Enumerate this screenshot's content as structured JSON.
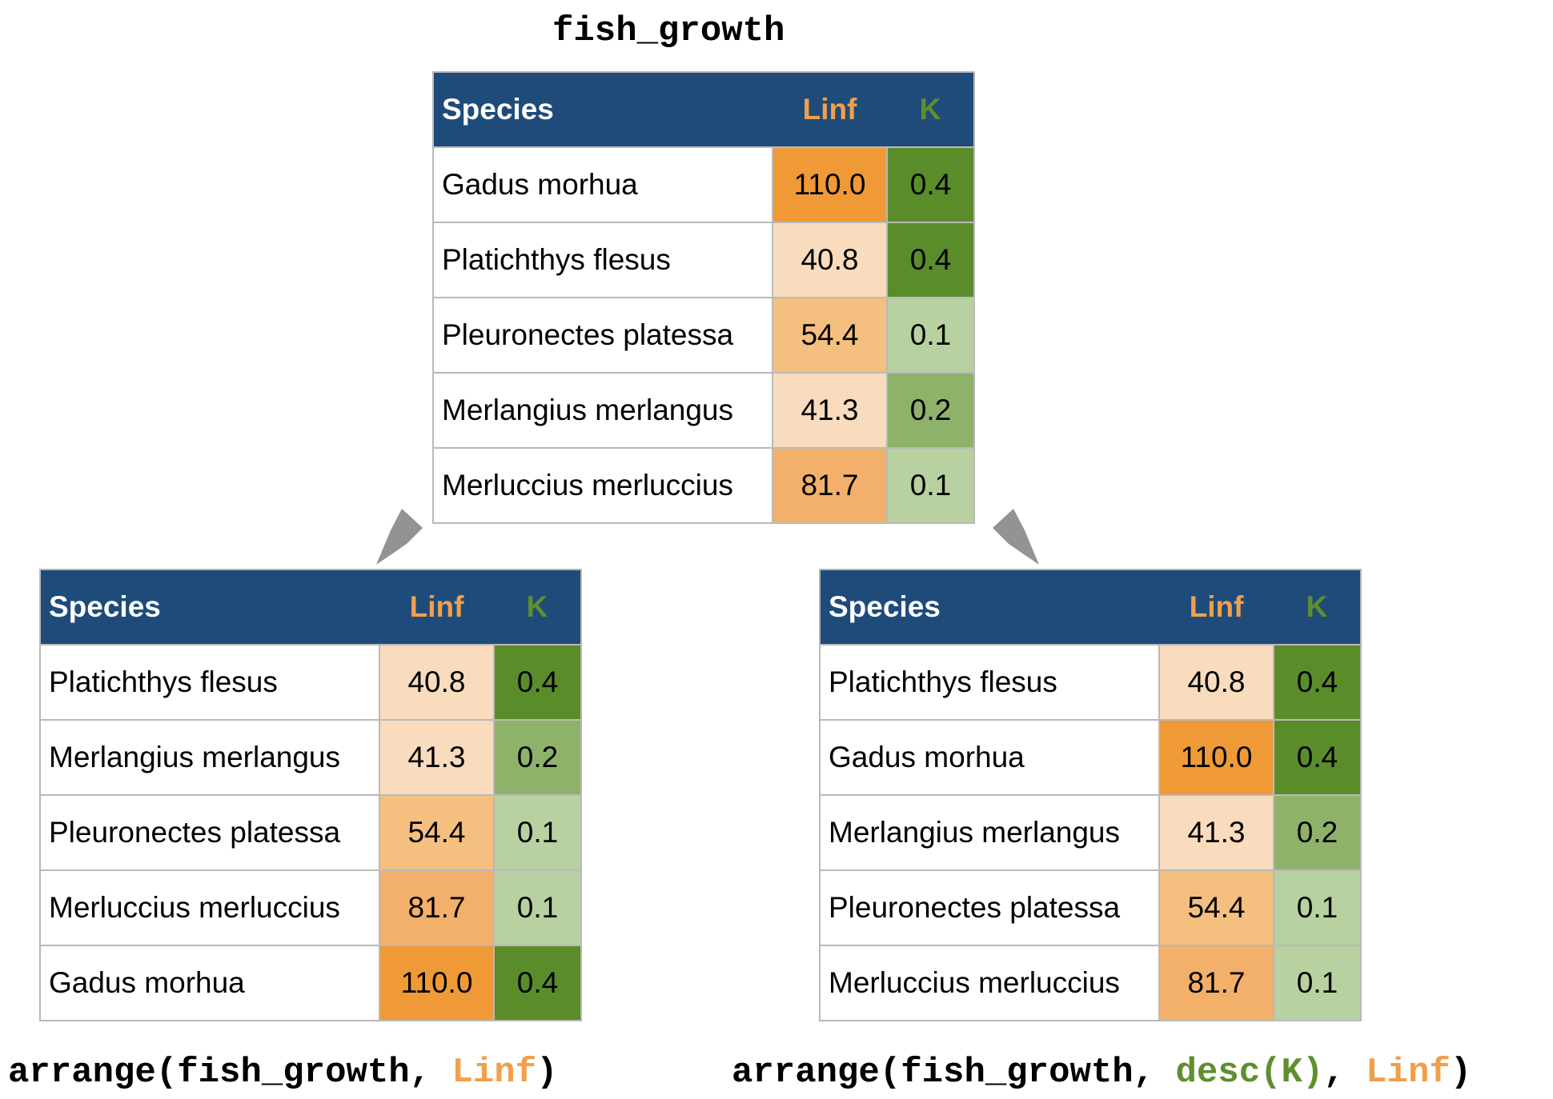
{
  "title": "fish_growth",
  "headers": {
    "species": "Species",
    "linf": "Linf",
    "k": "K"
  },
  "colors": {
    "header_bg": "#1f4b7b",
    "linf_header": "#f0a04b",
    "k_header": "#5f8f2c",
    "linf_scale": {
      "40.8": "#f8dcbd",
      "41.3": "#f8dcbd",
      "54.4": "#f5bf7f",
      "81.7": "#f3b06a",
      "110.0": "#ef9a36"
    },
    "k_scale": {
      "0.4": "#5b8c2a",
      "0.2": "#8fb26a",
      "0.1": "#b8d1a0"
    }
  },
  "tables": {
    "top": [
      {
        "species": "Gadus morhua",
        "linf": "110.0",
        "k": "0.4"
      },
      {
        "species": "Platichthys flesus",
        "linf": "40.8",
        "k": "0.4"
      },
      {
        "species": "Pleuronectes platessa",
        "linf": "54.4",
        "k": "0.1"
      },
      {
        "species": "Merlangius merlangus",
        "linf": "41.3",
        "k": "0.2"
      },
      {
        "species": "Merluccius merluccius",
        "linf": "81.7",
        "k": "0.1"
      }
    ],
    "left": [
      {
        "species": "Platichthys flesus",
        "linf": "40.8",
        "k": "0.4"
      },
      {
        "species": "Merlangius merlangus",
        "linf": "41.3",
        "k": "0.2"
      },
      {
        "species": "Pleuronectes platessa",
        "linf": "54.4",
        "k": "0.1"
      },
      {
        "species": "Merluccius merluccius",
        "linf": "81.7",
        "k": "0.1"
      },
      {
        "species": "Gadus morhua",
        "linf": "110.0",
        "k": "0.4"
      }
    ],
    "right": [
      {
        "species": "Platichthys flesus",
        "linf": "40.8",
        "k": "0.4"
      },
      {
        "species": "Gadus morhua",
        "linf": "110.0",
        "k": "0.4"
      },
      {
        "species": "Merlangius merlangus",
        "linf": "41.3",
        "k": "0.2"
      },
      {
        "species": "Pleuronectes platessa",
        "linf": "54.4",
        "k": "0.1"
      },
      {
        "species": "Merluccius merluccius",
        "linf": "81.7",
        "k": "0.1"
      }
    ]
  },
  "captions": {
    "left": {
      "prefix": "arrange(fish_growth, ",
      "linf": "Linf",
      "suffix": ")"
    },
    "right": {
      "prefix": "arrange(fish_growth, ",
      "desc": "desc(K)",
      "sep": ", ",
      "linf": "Linf",
      "suffix": ")"
    }
  }
}
